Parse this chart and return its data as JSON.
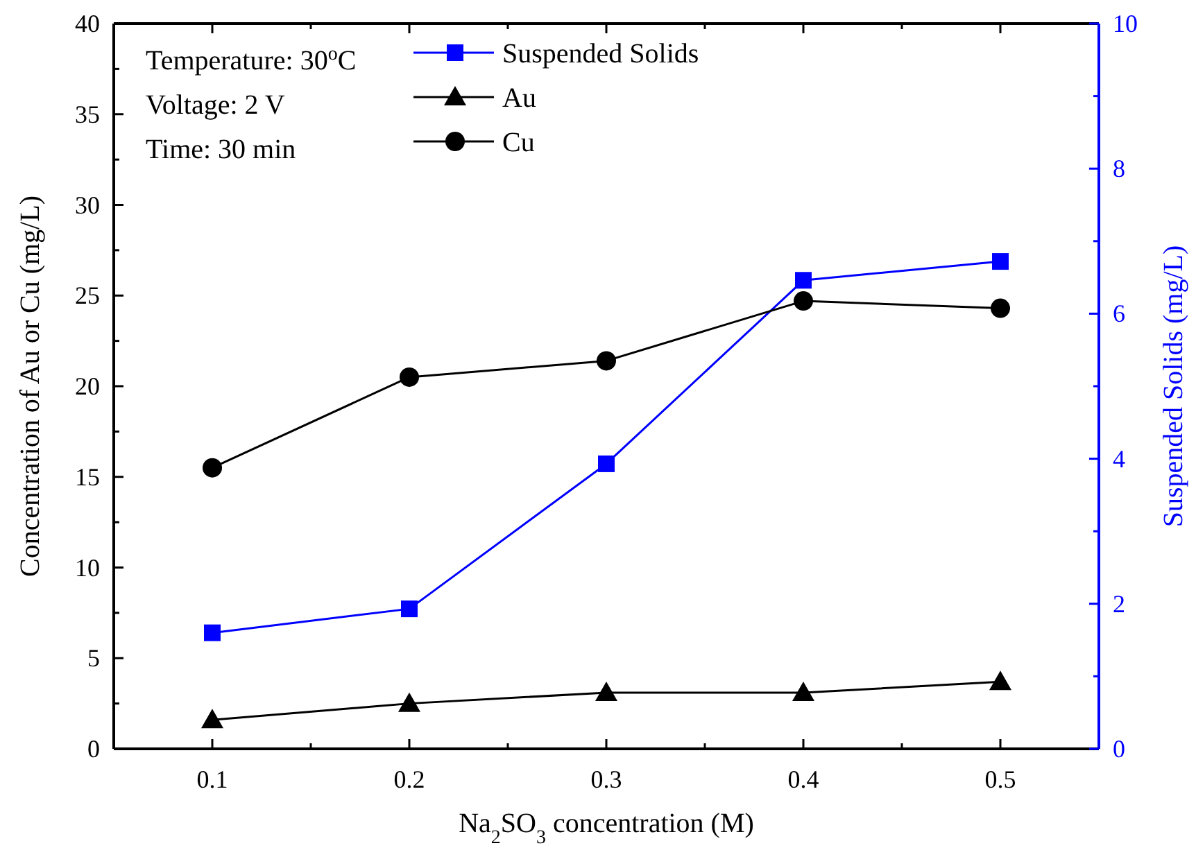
{
  "chart_data": {
    "type": "line",
    "xlabel": "Na$_{2}$SO$_{3}$ concentration (M)",
    "ylabel": "Concentration of Au or Cu (mg/L)",
    "y2label": "Suspended Solids (mg/L)",
    "x": [
      0.1,
      0.2,
      0.3,
      0.4,
      0.5
    ],
    "series": [
      {
        "name": "Suspended Solids",
        "color": "#0000ff",
        "marker": "square",
        "axis": "y2",
        "values": [
          1.6,
          1.93,
          3.93,
          6.46,
          6.72
        ]
      },
      {
        "name": "Au",
        "color": "#000000",
        "marker": "triangle",
        "values": [
          1.6,
          2.5,
          3.1,
          3.1,
          3.7
        ]
      },
      {
        "name": "Cu",
        "color": "#000000",
        "marker": "circle",
        "values": [
          15.5,
          20.5,
          21.4,
          24.7,
          24.3
        ]
      }
    ],
    "xlim": [
      0.05,
      0.55
    ],
    "xticks": [
      0.1,
      {
        "value": 0.15,
        "label": null
      },
      0.2,
      {
        "value": 0.25,
        "label": null
      },
      0.3,
      {
        "value": 0.35,
        "label": null
      },
      0.4,
      {
        "value": 0.45,
        "label": null
      },
      0.5
    ],
    "ylim": [
      0,
      40
    ],
    "yticks": [
      0,
      {
        "value": 2.5,
        "label": null
      },
      5,
      {
        "value": 7.5,
        "label": null
      },
      10,
      {
        "value": 12.5,
        "label": null
      },
      15,
      {
        "value": 17.5,
        "label": null
      },
      20,
      {
        "value": 22.5,
        "label": null
      },
      25,
      {
        "value": 27.5,
        "label": null
      },
      30,
      {
        "value": 32.5,
        "label": null
      },
      35,
      {
        "value": 37.5,
        "label": null
      },
      40
    ],
    "y2lim": [
      0,
      10
    ],
    "y2ticks": [
      0,
      {
        "value": 1,
        "label": null
      },
      2,
      {
        "value": 3,
        "label": null
      },
      4,
      {
        "value": 5,
        "label": null
      },
      6,
      {
        "value": 7,
        "label": null
      },
      8,
      {
        "value": 9,
        "label": null
      },
      10
    ],
    "annotations": [
      "Temperature: 30$^{o}$C",
      "Voltage: 2 V",
      "Time: 30 min"
    ],
    "legend": "top",
    "grid": false
  }
}
